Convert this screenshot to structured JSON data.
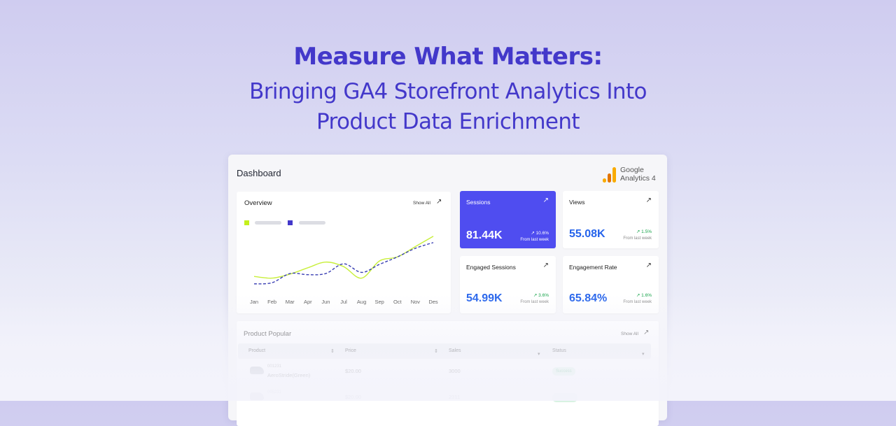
{
  "hero": {
    "title": "Measure What Matters:",
    "subtitle_line1": "Bringing GA4 Storefront Analytics Into",
    "subtitle_line2": "Product Data Enrichment"
  },
  "dashboard": {
    "title": "Dashboard",
    "logo_line1": "Google",
    "logo_line2": "Analytics 4"
  },
  "overview": {
    "title": "Overview",
    "show_all": "Show All",
    "legend_colors": [
      "#c4f01c",
      "#4338ca"
    ]
  },
  "chart_data": {
    "type": "line",
    "categories": [
      "Jan",
      "Feb",
      "Mar",
      "Apr",
      "Jun",
      "Jul",
      "Aug",
      "Sep",
      "Oct",
      "Nov",
      "Des"
    ],
    "series": [
      {
        "style": "solid",
        "color": "#c8ef3a",
        "values": [
          0.23,
          0.2,
          0.27,
          0.38,
          0.48,
          0.4,
          0.2,
          0.5,
          0.57,
          0.75,
          0.93
        ]
      },
      {
        "style": "dashed",
        "color": "#3a3fb3",
        "values": [
          0.1,
          0.12,
          0.28,
          0.26,
          0.28,
          0.45,
          0.3,
          0.44,
          0.57,
          0.72,
          0.82
        ]
      }
    ],
    "grid": false,
    "yaxis_labels": false
  },
  "stats": [
    {
      "label": "Sessions",
      "value": "81.44K",
      "delta": "↗ 10.6%",
      "sub": "From last week",
      "active": true
    },
    {
      "label": "Views",
      "value": "55.08K",
      "delta": "↗ 1.5%",
      "sub": "From last week",
      "active": false
    },
    {
      "label": "Engaged Sessions",
      "value": "54.99K",
      "delta": "↗ 3.6%",
      "sub": "From last week",
      "active": false
    },
    {
      "label": "Engagement Rate",
      "value": "65.84%",
      "delta": "↗ 1.6%",
      "sub": "From last week",
      "active": false
    }
  ],
  "product": {
    "title": "Product Popular",
    "show_all": "Show All",
    "columns": [
      "Product",
      "Price",
      "Sales",
      "Status"
    ],
    "rows": [
      {
        "id": "001231",
        "name": "AeroStride(Green)",
        "price": "$20.00",
        "sales": "3000",
        "status": "Success"
      },
      {
        "id": "005231",
        "name": "",
        "price": "$20.00",
        "sales": "2311",
        "status": ""
      }
    ]
  },
  "icons": {
    "arrow": "↗",
    "sort": "⇕",
    "filter": "▾"
  }
}
